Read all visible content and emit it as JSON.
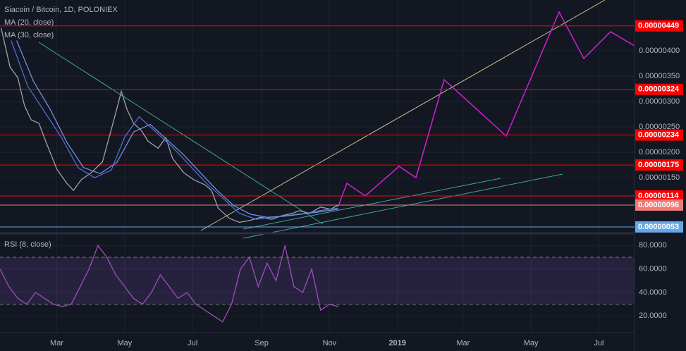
{
  "chart_data": [
    {
      "type": "line",
      "title": "Siacoin / Bitcoin, 1D, POLONIEX",
      "xlim": [
        0,
        570
      ],
      "xticks": [
        {
          "value": 51,
          "label": "Mar"
        },
        {
          "value": 112,
          "label": "May"
        },
        {
          "value": 173,
          "label": "Jul"
        },
        {
          "value": 235,
          "label": "Sep"
        },
        {
          "value": 296,
          "label": "Nov"
        },
        {
          "value": 357,
          "label": "2019"
        },
        {
          "value": 416,
          "label": "Mar"
        },
        {
          "value": 477,
          "label": "May"
        },
        {
          "value": 538,
          "label": "Jul"
        }
      ],
      "ylim": [
        4.6e-07,
        5e-06
      ],
      "yticks": [
        {
          "value": 4e-06,
          "label": "0.00000400"
        },
        {
          "value": 3.5e-06,
          "label": "0.00000350"
        },
        {
          "value": 3e-06,
          "label": "0.00000300"
        },
        {
          "value": 2.5e-06,
          "label": "0.00000250"
        },
        {
          "value": 2e-06,
          "label": "0.00000200"
        },
        {
          "value": 1.5e-06,
          "label": "0.00000150"
        }
      ],
      "grid": true,
      "series": [
        {
          "color": "#9aa3ad",
          "x": [
            1,
            9,
            16,
            22,
            28,
            35,
            41,
            51,
            60,
            66,
            73,
            82,
            92,
            98,
            104,
            109,
            114,
            120,
            127,
            133,
            142,
            149,
            155,
            165,
            174,
            184,
            190,
            196,
            206,
            215,
            225,
            234,
            244,
            253,
            263,
            269,
            278,
            288,
            297,
            304
          ],
          "values": [
            4.45e-06,
            3.68e-06,
            3.47e-06,
            2.92e-06,
            2.64e-06,
            2.57e-06,
            2.22e-06,
            1.67e-06,
            1.39e-06,
            1.25e-06,
            1.46e-06,
            1.6e-06,
            1.81e-06,
            2.29e-06,
            2.78e-06,
            3.2e-06,
            2.85e-06,
            2.57e-06,
            2.43e-06,
            2.22e-06,
            2.08e-06,
            2.29e-06,
            1.88e-06,
            1.6e-06,
            1.46e-06,
            1.36e-06,
            1.25e-06,
            9e-07,
            7e-07,
            6.2e-07,
            6.6e-07,
            7.2e-07,
            6.8e-07,
            7.5e-07,
            8e-07,
            8.5e-07,
            8e-07,
            9.2e-07,
            8.8e-07,
            9.6e-07
          ]
        },
        {
          "name": "MA (20, close)",
          "color": "#4a6fd1",
          "x": [
            10,
            25,
            40,
            55,
            70,
            85,
            100,
            112,
            125,
            140,
            155,
            170,
            185,
            200,
            215,
            230,
            245,
            260,
            275,
            290,
            304
          ],
          "values": [
            4.2e-06,
            3.3e-06,
            2.8e-06,
            2.3e-06,
            1.7e-06,
            1.5e-06,
            1.65e-06,
            2.3e-06,
            2.7e-06,
            2.4e-06,
            2.1e-06,
            1.75e-06,
            1.4e-06,
            1.1e-06,
            8e-07,
            6.8e-07,
            7.2e-07,
            7.6e-07,
            8e-07,
            8.6e-07,
            9e-07
          ]
        },
        {
          "name": "MA (30, close)",
          "color": "#6f8fe0",
          "x": [
            15,
            30,
            45,
            60,
            75,
            90,
            105,
            120,
            135,
            150,
            165,
            180,
            195,
            210,
            225,
            240,
            255,
            270,
            285,
            304
          ],
          "values": [
            4.2e-06,
            3.4e-06,
            2.85e-06,
            2.2e-06,
            1.7e-06,
            1.58e-06,
            1.8e-06,
            2.4e-06,
            2.55e-06,
            2.25e-06,
            1.95e-06,
            1.6e-06,
            1.25e-06,
            9.5e-07,
            7.8e-07,
            7.2e-07,
            7.4e-07,
            7.8e-07,
            8.2e-07,
            8.8e-07
          ]
        }
      ],
      "levels": [
        {
          "value": 4.49e-06,
          "label": "0.00000449",
          "color": "#ff0000"
        },
        {
          "value": 3.24e-06,
          "label": "0.00000324",
          "color": "#ff0000"
        },
        {
          "value": 2.34e-06,
          "label": "0.00000234",
          "color": "#ff0000"
        },
        {
          "value": 1.75e-06,
          "label": "0.00000175",
          "color": "#ff0000"
        },
        {
          "value": 1.14e-06,
          "label": "0.00000114",
          "color": "#ff0000"
        },
        {
          "value": 9.6e-07,
          "label": "0.00000096",
          "color": "#ef7a7a"
        },
        {
          "value": 5.3e-07,
          "label": "0.00000053",
          "color": "#64a8e8"
        }
      ]
    },
    {
      "type": "line",
      "xlim": [
        0,
        570
      ],
      "ylim": [
        7,
        88
      ],
      "yticks": [
        {
          "value": 80,
          "label": "80.0000"
        },
        {
          "value": 60,
          "label": "60.0000"
        },
        {
          "value": 40,
          "label": "40.0000"
        },
        {
          "value": 20,
          "label": "20.0000"
        }
      ],
      "bands": [
        70,
        30
      ],
      "series": [
        {
          "name": "RSI (8, close)",
          "color": "#9c4fb8",
          "x": [
            0,
            8,
            16,
            24,
            32,
            40,
            48,
            56,
            64,
            72,
            80,
            88,
            96,
            104,
            112,
            120,
            128,
            136,
            144,
            152,
            160,
            168,
            176,
            184,
            192,
            200,
            208,
            216,
            224,
            232,
            240,
            248,
            256,
            264,
            272,
            280,
            288,
            296,
            304
          ],
          "values": [
            60,
            45,
            35,
            30,
            40,
            35,
            30,
            28,
            30,
            45,
            60,
            80,
            70,
            55,
            45,
            35,
            30,
            40,
            55,
            45,
            35,
            40,
            30,
            25,
            20,
            15,
            30,
            60,
            70,
            45,
            65,
            50,
            80,
            45,
            40,
            60,
            25,
            30,
            28
          ]
        }
      ]
    }
  ]
}
